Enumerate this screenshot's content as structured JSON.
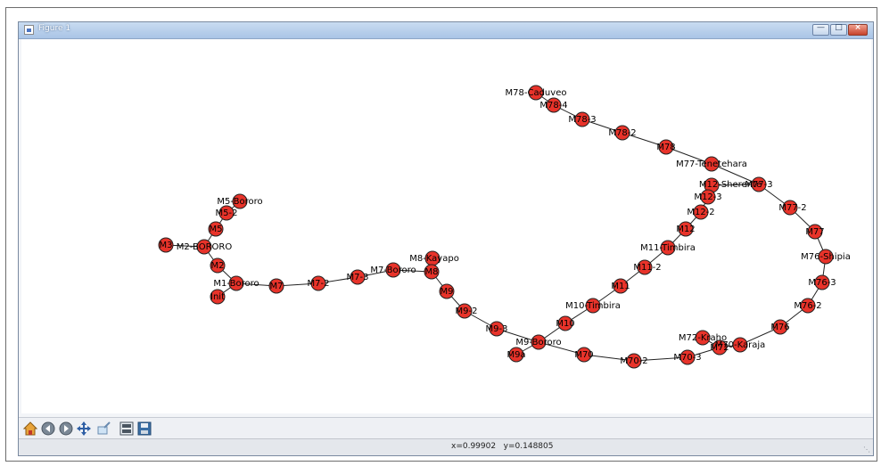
{
  "window": {
    "title": "Figure 1",
    "controls": [
      "minimize-icon",
      "maximize-icon",
      "close-icon"
    ]
  },
  "graph": {
    "labels": {
      "m78_caduveo": "M78-Caduveo",
      "m78_4": "M78-4",
      "m78_3": "M78-3",
      "m78_2": "M78-2",
      "m78": "M78",
      "m77_tenetehara": "M77-Tenetehara",
      "m12_sherente": "M12-Sherente",
      "m77_3": "M77-3",
      "m12_3": "M12-3",
      "m12_2": "M12-2",
      "m77_2": "M77-2",
      "m12": "M12",
      "m77": "M77",
      "m11_timbira": "M11-Timbira",
      "m76_shipia": "M76-Shipia",
      "m11_2": "M11-2",
      "m11": "M11",
      "m76_3": "M76-3",
      "m10_timbira": "M10-Timbira",
      "m76_2": "M76-2",
      "m10": "M10",
      "m76": "M76",
      "m72_kraho": "M72-Kraho",
      "m70_karaja": "M70-Karaja",
      "m72": "M72",
      "m9_bororo": "M9-Bororo",
      "m70_3": "M70-3",
      "m9a": "M9a",
      "m70": "M70",
      "m70_2": "M70-2",
      "m9_3": "M9-3",
      "m9_2": "M9-2",
      "m9": "M9",
      "m8_kayapo": "M8-Kayapo",
      "m8": "M8",
      "m7_bororo": "M7-Bororo",
      "m7_3": "M7-3",
      "m7_2": "M7-2",
      "m7": "M7",
      "m1_bororo": "M1-Bororo",
      "init": "Init",
      "m2": "M2",
      "m2_bororo": "M2-BORORO",
      "m3": "M3",
      "m5": "M5",
      "m5_2": "M5-2",
      "m5_bororo": "M5-Bororo"
    }
  },
  "toolbar": {
    "tools": [
      "home-icon",
      "back-icon",
      "forward-icon",
      "pan-icon",
      "zoom-icon",
      "subplots-icon",
      "save-icon"
    ]
  },
  "status": {
    "coords": "x=0.99902   y=0.148805"
  },
  "colors": {
    "node_fill": "#e8332a",
    "edge": "#222222",
    "titlebar": "#b8cfea"
  }
}
